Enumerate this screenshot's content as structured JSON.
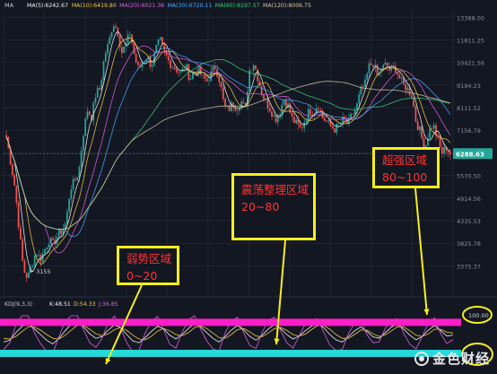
{
  "header": {
    "label": "MA",
    "ma": [
      {
        "text": "MA(5):6242.67",
        "color": "#f3f3f3"
      },
      {
        "text": "MA(10):6419.80",
        "color": "#f5c842"
      },
      {
        "text": "MA(20):6021.36",
        "color": "#e060e0"
      },
      {
        "text": "MA(30):6720.11",
        "color": "#4aa8ff"
      },
      {
        "text": "MA(60):8197.57",
        "color": "#3ad07a"
      },
      {
        "text": "MA(120):8006.75",
        "color": "#d8c7a0"
      }
    ]
  },
  "indicator_header": {
    "name": "KDJ(9,3,3)",
    "k": "K:48.51",
    "d": "D:54.33",
    "j": "J:36.85",
    "k_color": "#f3f3f3",
    "d_color": "#f5c842",
    "j_color": "#e060e0"
  },
  "annotations": {
    "weak": {
      "line1": "弱势区域",
      "line2": "0~20"
    },
    "range": {
      "line1": "震荡整理区域",
      "line2": "20~80"
    },
    "strong": {
      "line1": "超强区域",
      "line2": "80~100"
    }
  },
  "low_label": "← 3155",
  "price_badge": "6288.63",
  "indicator_axis_label": "100.00",
  "watermark": "金色财经",
  "colors": {
    "background": "#131722",
    "up": "#26a69a",
    "down": "#ef5350",
    "highlight_yellow": "#f6ef1a",
    "band_magenta": "#ff1ec8",
    "band_cyan": "#25d9d9",
    "badge": "#26a69a"
  },
  "chart_data": [
    {
      "type": "candlestick",
      "y_ticks": [
        13388.0,
        11811.25,
        10421.56,
        9194.23,
        8111.52,
        7156.79,
        6314.06,
        5570.5,
        4914.56,
        4335.53,
        3825.78,
        3375.37
      ],
      "ylim": [
        3155,
        13880
      ],
      "y_scale": "log",
      "labeled_low": 3155,
      "last_price": 6288.63,
      "close_path": [
        6900,
        6000,
        5200,
        4100,
        3300,
        3155,
        3400,
        3650,
        3500,
        3700,
        3900,
        3800,
        4000,
        4100,
        4300,
        5200,
        5400,
        5700,
        7000,
        8000,
        7700,
        8800,
        9000,
        10800,
        11600,
        13000,
        12500,
        11000,
        11500,
        12300,
        10800,
        10000,
        10500,
        10800,
        10200,
        11200,
        11800,
        11000,
        10500,
        10200,
        10000,
        9800,
        10300,
        9500,
        9900,
        10000,
        9600,
        9400,
        9800,
        10200,
        9400,
        8200,
        8000,
        8300,
        8100,
        8400,
        8000,
        10000,
        10400,
        9500,
        8700,
        8300,
        8000,
        7600,
        7900,
        8500,
        8200,
        7600,
        7400,
        7200,
        7600,
        8000,
        7900,
        8300,
        7700,
        7500,
        7300,
        7200,
        7400,
        7600,
        7400,
        7800,
        8100,
        8900,
        9200,
        10200,
        10400,
        9600,
        10100,
        10300,
        9900,
        10200,
        9600,
        9200,
        9000,
        8700,
        7500,
        7100,
        6400,
        7100,
        7400,
        6800,
        6300,
        6500,
        6290
      ],
      "overlays": [
        "MA(5)",
        "MA(10)",
        "MA(20)",
        "MA(30)",
        "MA(60)",
        "MA(120)"
      ]
    },
    {
      "type": "line",
      "name": "KDJ(9,3,3)",
      "ylim": [
        0,
        100
      ],
      "thresholds": [
        80,
        100
      ],
      "series": [
        {
          "name": "K",
          "values": [
            30,
            35,
            55,
            72,
            80,
            65,
            50,
            35,
            25,
            40,
            60,
            78,
            85,
            70,
            52,
            40,
            45,
            62,
            75,
            68,
            50,
            33,
            28,
            42,
            58,
            72,
            65,
            48,
            38,
            50,
            66,
            79,
            70,
            55,
            40,
            30,
            45,
            62,
            74,
            62,
            45,
            35,
            48,
            65,
            76,
            66,
            50,
            38,
            46,
            60,
            72,
            80,
            68,
            50,
            36,
            30,
            44,
            60,
            70,
            58,
            44,
            40,
            55,
            70,
            78,
            64,
            48,
            36,
            45,
            62,
            74,
            60,
            46,
            48.51
          ]
        },
        {
          "name": "D",
          "values": [
            40,
            38,
            45,
            58,
            70,
            70,
            62,
            50,
            40,
            38,
            48,
            62,
            75,
            74,
            64,
            52,
            47,
            52,
            63,
            68,
            61,
            48,
            38,
            36,
            45,
            59,
            66,
            60,
            50,
            47,
            55,
            68,
            73,
            66,
            54,
            42,
            40,
            50,
            63,
            66,
            57,
            46,
            44,
            54,
            66,
            69,
            61,
            50,
            46,
            51,
            63,
            74,
            74,
            64,
            50,
            40,
            40,
            50,
            62,
            62,
            52,
            45,
            49,
            60,
            71,
            70,
            60,
            48,
            45,
            52,
            64,
            64,
            56,
            54.33
          ]
        },
        {
          "name": "J",
          "values": [
            10,
            28,
            75,
            100,
            100,
            55,
            26,
            5,
            0,
            45,
            85,
            100,
            100,
            62,
            28,
            16,
            40,
            82,
            99,
            68,
            28,
            3,
            8,
            54,
            84,
            98,
            63,
            24,
            14,
            56,
            88,
            100,
            64,
            33,
            12,
            6,
            55,
            86,
            96,
            54,
            21,
            13,
            56,
            88,
            96,
            60,
            28,
            14,
            46,
            78,
            90,
            92,
            56,
            22,
            8,
            10,
            52,
            80,
            86,
            50,
            28,
            30,
            67,
            90,
            92,
            52,
            24,
            12,
            45,
            82,
            94,
            52,
            26,
            36.85
          ]
        }
      ]
    }
  ]
}
